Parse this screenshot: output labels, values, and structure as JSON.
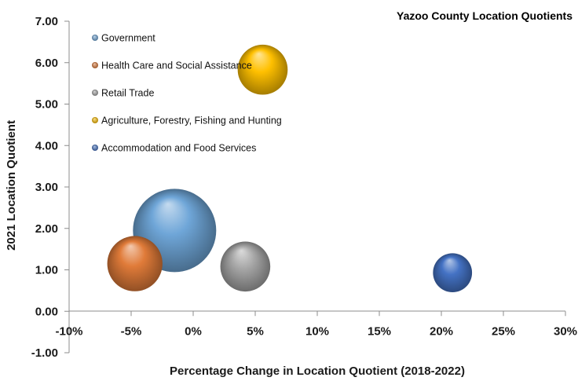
{
  "chart_data": {
    "type": "bubble",
    "title": "Yazoo County Location Quotients",
    "xlabel": "Percentage Change in Location Quotient (2018-2022)",
    "ylabel": "2021 Location Quotient",
    "xlim": [
      -0.1,
      0.3
    ],
    "ylim": [
      -1.0,
      7.0
    ],
    "x_ticks": [
      "-10%",
      "-5%",
      "0%",
      "5%",
      "10%",
      "15%",
      "20%",
      "25%",
      "30%"
    ],
    "y_ticks": [
      "7.00",
      "6.00",
      "5.00",
      "4.00",
      "3.00",
      "2.00",
      "1.00",
      "0.00",
      "-1.00"
    ],
    "grid": false,
    "legend_position": "top-left",
    "series": [
      {
        "name": "Government",
        "x": -0.015,
        "y": 1.95,
        "size": 100,
        "color": "#6fa6d8"
      },
      {
        "name": "Health Care and Social Assistance",
        "x": -0.047,
        "y": 1.15,
        "size": 44,
        "color": "#e07b39"
      },
      {
        "name": "Retail Trade",
        "x": 0.042,
        "y": 1.08,
        "size": 36,
        "color": "#a6a6a6"
      },
      {
        "name": "Agriculture, Forestry, Fishing and Hunting",
        "x": 0.056,
        "y": 5.83,
        "size": 36,
        "color": "#ffc000"
      },
      {
        "name": "Accommodation and Food Services",
        "x": 0.209,
        "y": 0.93,
        "size": 22,
        "color": "#4472c4"
      }
    ]
  }
}
